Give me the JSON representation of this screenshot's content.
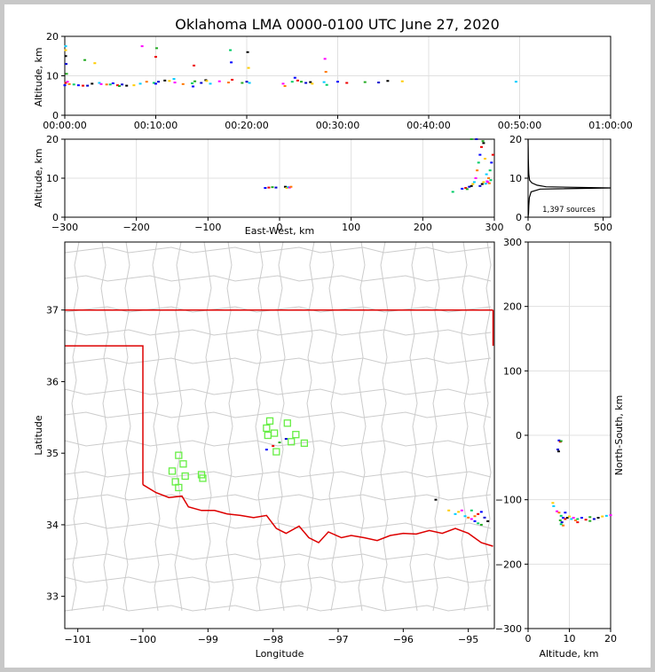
{
  "title": "Oklahoma LMA 0000-0100 UTC June 27, 2020",
  "chart_data": [
    {
      "id": "time-height",
      "type": "scatter",
      "xlabel": "",
      "ylabel": "Altitude, km",
      "x_tick_labels": [
        "00:00:00",
        "00:10:00",
        "00:20:00",
        "00:30:00",
        "00:40:00",
        "00:50:00",
        "01:00:00"
      ],
      "xlim_minutes": [
        0,
        60
      ],
      "ylim": [
        0,
        20
      ],
      "y_ticks": [
        0,
        10,
        20
      ],
      "grid": true,
      "points": [
        [
          0,
          7.6
        ],
        [
          0.1,
          8.2
        ],
        [
          0.2,
          10.5
        ],
        [
          0.15,
          13
        ],
        [
          0.1,
          15
        ],
        [
          0.1,
          16.5
        ],
        [
          0.1,
          17.5
        ],
        [
          0.3,
          8.5
        ],
        [
          0.5,
          7.9
        ],
        [
          1,
          7.8
        ],
        [
          1.5,
          7.6
        ],
        [
          2,
          7.5
        ],
        [
          2.2,
          14
        ],
        [
          2.5,
          7.5
        ],
        [
          3,
          8
        ],
        [
          3.3,
          13.2
        ],
        [
          3.8,
          8.2
        ],
        [
          4,
          7.9
        ],
        [
          4.6,
          7.8
        ],
        [
          5,
          7.8
        ],
        [
          5.3,
          8.1
        ],
        [
          5.8,
          7.6
        ],
        [
          6,
          7.4
        ],
        [
          6.3,
          7.8
        ],
        [
          6.8,
          7.5
        ],
        [
          7.6,
          7.6
        ],
        [
          8.3,
          8
        ],
        [
          8.5,
          17.5
        ],
        [
          9,
          8.5
        ],
        [
          9.8,
          8.2
        ],
        [
          10,
          8
        ],
        [
          10,
          14.8
        ],
        [
          10.1,
          17
        ],
        [
          10.3,
          8.5
        ],
        [
          11,
          8.8
        ],
        [
          11.5,
          8.7
        ],
        [
          12,
          9.2
        ],
        [
          12.1,
          8.3
        ],
        [
          13,
          7.9
        ],
        [
          14,
          8.1
        ],
        [
          14.1,
          7.3
        ],
        [
          14.2,
          12.6
        ],
        [
          14.3,
          8.6
        ],
        [
          15,
          8.2
        ],
        [
          15.5,
          8.9
        ],
        [
          15.6,
          8.7
        ],
        [
          16,
          8
        ],
        [
          17,
          8.6
        ],
        [
          18,
          8.3
        ],
        [
          18.2,
          16.5
        ],
        [
          18.3,
          13.4
        ],
        [
          18.4,
          9
        ],
        [
          19.5,
          8.2
        ],
        [
          20,
          8.5
        ],
        [
          20.1,
          16
        ],
        [
          20.2,
          12
        ],
        [
          20.3,
          8.2
        ],
        [
          24,
          8
        ],
        [
          24.2,
          7.4
        ],
        [
          25,
          8.5
        ],
        [
          25.3,
          9.5
        ],
        [
          25.6,
          8.8
        ],
        [
          26,
          8.5
        ],
        [
          26.5,
          8.2
        ],
        [
          27,
          8.4
        ],
        [
          27.2,
          8
        ],
        [
          28.5,
          8.4
        ],
        [
          28.6,
          14.3
        ],
        [
          28.7,
          11
        ],
        [
          28.8,
          7.7
        ],
        [
          30,
          8.5
        ],
        [
          31,
          8.2
        ],
        [
          33,
          8.4
        ],
        [
          34.5,
          8.3
        ],
        [
          35.5,
          8.7
        ],
        [
          37.1,
          8.6
        ],
        [
          49.6,
          8.5
        ]
      ]
    },
    {
      "id": "ew-height",
      "type": "scatter",
      "xlabel": "East-West, km",
      "ylabel": "Altitude, km",
      "xlim": [
        -300,
        300
      ],
      "ylim": [
        0,
        20
      ],
      "x_ticks": [
        -300,
        -200,
        -100,
        0,
        100,
        200,
        300
      ],
      "y_ticks": [
        0,
        10,
        20
      ],
      "grid": true,
      "points": [
        [
          -20,
          7.5
        ],
        [
          -15,
          7.6
        ],
        [
          -10,
          7.7
        ],
        [
          -5,
          7.6
        ],
        [
          8,
          7.8
        ],
        [
          10,
          7.5
        ],
        [
          12,
          7.7
        ],
        [
          14,
          7.6
        ],
        [
          16,
          7.8
        ],
        [
          242,
          6.5
        ],
        [
          255,
          7.3
        ],
        [
          260,
          7.5
        ],
        [
          262,
          7.2
        ],
        [
          265,
          7.8
        ],
        [
          268,
          8
        ],
        [
          270,
          8.5
        ],
        [
          272,
          9
        ],
        [
          274,
          10
        ],
        [
          276,
          12
        ],
        [
          278,
          14
        ],
        [
          280,
          16
        ],
        [
          282,
          18
        ],
        [
          284,
          19.5
        ],
        [
          280,
          8
        ],
        [
          283,
          8.5
        ],
        [
          285,
          9
        ],
        [
          288,
          8.6
        ],
        [
          290,
          9.2
        ],
        [
          292,
          10
        ],
        [
          294,
          12
        ],
        [
          296,
          14
        ],
        [
          298,
          16
        ],
        [
          268,
          20
        ],
        [
          275,
          20
        ],
        [
          285,
          19
        ],
        [
          287,
          15
        ],
        [
          289,
          11
        ],
        [
          291,
          9
        ],
        [
          293,
          8.7
        ],
        [
          295,
          9.5
        ]
      ]
    },
    {
      "id": "source-histogram",
      "type": "line",
      "annotation": "1,397 sources",
      "xlim": [
        0,
        550
      ],
      "ylim": [
        0,
        20
      ],
      "x_ticks": [
        0,
        500
      ],
      "y_ticks": [
        0,
        10,
        20
      ],
      "grid": true,
      "profile": [
        [
          0,
          0
        ],
        [
          3,
          1
        ],
        [
          5,
          3
        ],
        [
          8,
          5
        ],
        [
          20,
          6.5
        ],
        [
          80,
          7.2
        ],
        [
          550,
          7.5
        ],
        [
          120,
          7.8
        ],
        [
          60,
          8.2
        ],
        [
          25,
          8.8
        ],
        [
          10,
          9.5
        ],
        [
          5,
          11
        ],
        [
          3,
          13
        ],
        [
          2,
          15
        ],
        [
          1,
          17
        ],
        [
          0,
          20
        ]
      ]
    },
    {
      "id": "plan-view",
      "type": "scatter",
      "xlabel": "Longitude",
      "ylabel": "Latitude",
      "xlim": [
        -101.2,
        -94.6
      ],
      "ylim": [
        32.55,
        37.95
      ],
      "x_ticks": [
        -101,
        -100,
        -99,
        -98,
        -97,
        -96,
        -95
      ],
      "y_ticks": [
        33,
        34,
        35,
        36,
        37
      ],
      "points": [
        [
          -98.1,
          35.05
        ],
        [
          -98.0,
          35.1
        ],
        [
          -97.9,
          35.15
        ],
        [
          -97.8,
          35.2
        ],
        [
          -95.5,
          34.35
        ],
        [
          -95.3,
          34.2
        ],
        [
          -95.2,
          34.15
        ],
        [
          -95.1,
          34.2
        ],
        [
          -95.0,
          34.1
        ],
        [
          -94.95,
          34.2
        ],
        [
          -94.9,
          34.05
        ],
        [
          -94.85,
          34.15
        ],
        [
          -94.8,
          34.0
        ],
        [
          -94.75,
          34.1
        ],
        [
          -94.7,
          34.05
        ],
        [
          -95.15,
          34.18
        ],
        [
          -95.05,
          34.12
        ],
        [
          -94.95,
          34.08
        ],
        [
          -94.9,
          34.12
        ],
        [
          -94.85,
          34.02
        ],
        [
          -94.8,
          34.18
        ]
      ],
      "stations": [
        [
          -99.55,
          34.75
        ],
        [
          -99.45,
          34.97
        ],
        [
          -99.38,
          34.85
        ],
        [
          -99.5,
          34.6
        ],
        [
          -99.45,
          34.52
        ],
        [
          -99.35,
          34.68
        ],
        [
          -99.1,
          34.7
        ],
        [
          -99.08,
          34.65
        ],
        [
          -98.05,
          35.45
        ],
        [
          -98.1,
          35.35
        ],
        [
          -98.08,
          35.25
        ],
        [
          -97.98,
          35.28
        ],
        [
          -97.95,
          35.02
        ],
        [
          -97.78,
          35.42
        ],
        [
          -97.72,
          35.16
        ],
        [
          -97.65,
          35.26
        ],
        [
          -97.52,
          35.14
        ]
      ]
    },
    {
      "id": "ns-height",
      "type": "scatter",
      "xlabel": "Altitude, km",
      "ylabel": "North-South, km",
      "xlim": [
        0,
        20
      ],
      "ylim": [
        -300,
        300
      ],
      "x_ticks": [
        0,
        10,
        20
      ],
      "y_ticks": [
        -300,
        -200,
        -100,
        0,
        100,
        200,
        300
      ],
      "grid": true,
      "points": [
        [
          7.5,
          -8
        ],
        [
          7.8,
          -10
        ],
        [
          8,
          -9
        ],
        [
          7.2,
          -22
        ],
        [
          7.4,
          -25
        ],
        [
          6,
          -105
        ],
        [
          6.2,
          -110
        ],
        [
          7,
          -118
        ],
        [
          7.5,
          -120
        ],
        [
          8,
          -125
        ],
        [
          8.5,
          -128
        ],
        [
          9,
          -130
        ],
        [
          7.8,
          -132
        ],
        [
          8.2,
          -135
        ],
        [
          9.5,
          -128
        ],
        [
          10,
          -126
        ],
        [
          10.5,
          -130
        ],
        [
          11,
          -128
        ],
        [
          11.5,
          -132
        ],
        [
          12,
          -130
        ],
        [
          13,
          -128
        ],
        [
          14,
          -131
        ],
        [
          15,
          -127
        ],
        [
          16,
          -130
        ],
        [
          17,
          -128
        ],
        [
          18,
          -126
        ],
        [
          19,
          -125
        ],
        [
          20,
          -124
        ],
        [
          8.5,
          -140
        ],
        [
          8,
          -138
        ],
        [
          9,
          -120
        ],
        [
          12,
          -135
        ],
        [
          15,
          -133
        ]
      ]
    }
  ]
}
